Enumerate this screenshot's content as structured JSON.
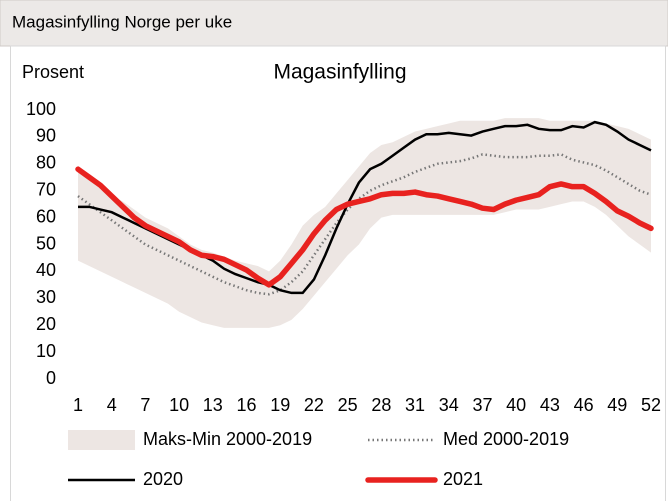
{
  "header": "Magasinfylling Norge per uke",
  "chart_data": {
    "type": "line",
    "title": "Magasinfylling",
    "y_label": "Prosent",
    "x": [
      1,
      2,
      3,
      4,
      5,
      6,
      7,
      8,
      9,
      10,
      11,
      12,
      13,
      14,
      15,
      16,
      17,
      18,
      19,
      20,
      21,
      22,
      23,
      24,
      25,
      26,
      27,
      28,
      29,
      30,
      31,
      32,
      33,
      34,
      35,
      36,
      37,
      38,
      39,
      40,
      41,
      42,
      43,
      44,
      45,
      46,
      47,
      48,
      49,
      50,
      51,
      52
    ],
    "xlim": [
      1,
      52
    ],
    "xticks": [
      1,
      4,
      7,
      10,
      13,
      16,
      19,
      22,
      25,
      28,
      31,
      34,
      37,
      40,
      43,
      46,
      49,
      52
    ],
    "ylim": [
      0,
      100
    ],
    "yticks": [
      0,
      10,
      20,
      30,
      40,
      50,
      60,
      70,
      80,
      90,
      100
    ],
    "series": [
      {
        "name": "Maks-Min 2000-2019",
        "style": "band",
        "color": "#ede6e3",
        "high": [
          78,
          74,
          71,
          68,
          66,
          63,
          60,
          58,
          56,
          53,
          50,
          48,
          47,
          45.5,
          44,
          43,
          42,
          40,
          44,
          50,
          57,
          61,
          64,
          69,
          74,
          79,
          84,
          87,
          88,
          90,
          92,
          93,
          94,
          95,
          96,
          96,
          96,
          96,
          97,
          97,
          97,
          97,
          96,
          96,
          96,
          96,
          96,
          95,
          94,
          93,
          91,
          89
        ],
        "low": [
          44,
          42,
          40,
          38,
          36,
          34,
          32,
          30,
          28,
          25,
          23,
          21,
          20,
          19,
          19,
          19,
          19,
          19,
          20,
          22,
          26,
          31,
          36,
          41,
          46,
          50,
          56,
          60,
          61,
          61,
          61,
          61,
          61,
          61,
          61,
          61,
          61,
          61,
          62,
          63,
          63,
          63,
          64,
          65,
          66,
          66,
          64,
          61,
          57,
          53,
          50,
          47
        ]
      },
      {
        "name": "Med 2000-2019",
        "style": "dotted",
        "color": "#777777",
        "values": [
          68,
          65,
          62,
          59,
          56,
          53,
          50,
          48,
          46,
          44,
          42,
          40,
          38,
          36,
          34.5,
          33,
          32,
          31.5,
          33,
          36,
          40,
          46,
          52,
          58,
          63,
          67,
          70,
          72,
          73.5,
          75,
          77,
          78.5,
          80,
          80.5,
          81,
          82,
          83.5,
          83,
          82.5,
          82.5,
          82.5,
          83,
          83,
          83.5,
          81.5,
          80.5,
          79.5,
          77.5,
          75,
          72.5,
          70,
          68.5
        ]
      },
      {
        "name": "2020",
        "style": "solid",
        "color": "#000000",
        "values": [
          64,
          64,
          63,
          62,
          60,
          58,
          56,
          54,
          52,
          50,
          48,
          46,
          44,
          41,
          39,
          37.5,
          36,
          35,
          33,
          32,
          32,
          37,
          46,
          56,
          65,
          73,
          78,
          80,
          83,
          86,
          89,
          91,
          91,
          91.5,
          91,
          90.5,
          92,
          93,
          94,
          94,
          94.5,
          93,
          92.5,
          92.5,
          94,
          93.5,
          95.5,
          94.5,
          92,
          89,
          87,
          85
        ]
      },
      {
        "name": "2021",
        "style": "thick",
        "color": "#e8221f",
        "values": [
          78,
          75,
          72,
          68,
          64,
          60,
          57,
          55,
          53,
          51,
          48,
          46,
          45.5,
          44.5,
          42.5,
          40.5,
          37.5,
          35,
          38,
          43,
          48,
          54,
          59,
          63,
          65,
          66,
          67,
          68.5,
          69,
          69,
          69.5,
          68.5,
          68,
          67,
          66,
          65,
          63.5,
          63,
          65,
          66.5,
          67.5,
          68.5,
          71.5,
          72.5,
          71.5,
          71.5,
          69,
          66,
          62.5,
          60.5,
          58,
          56
        ]
      }
    ]
  }
}
